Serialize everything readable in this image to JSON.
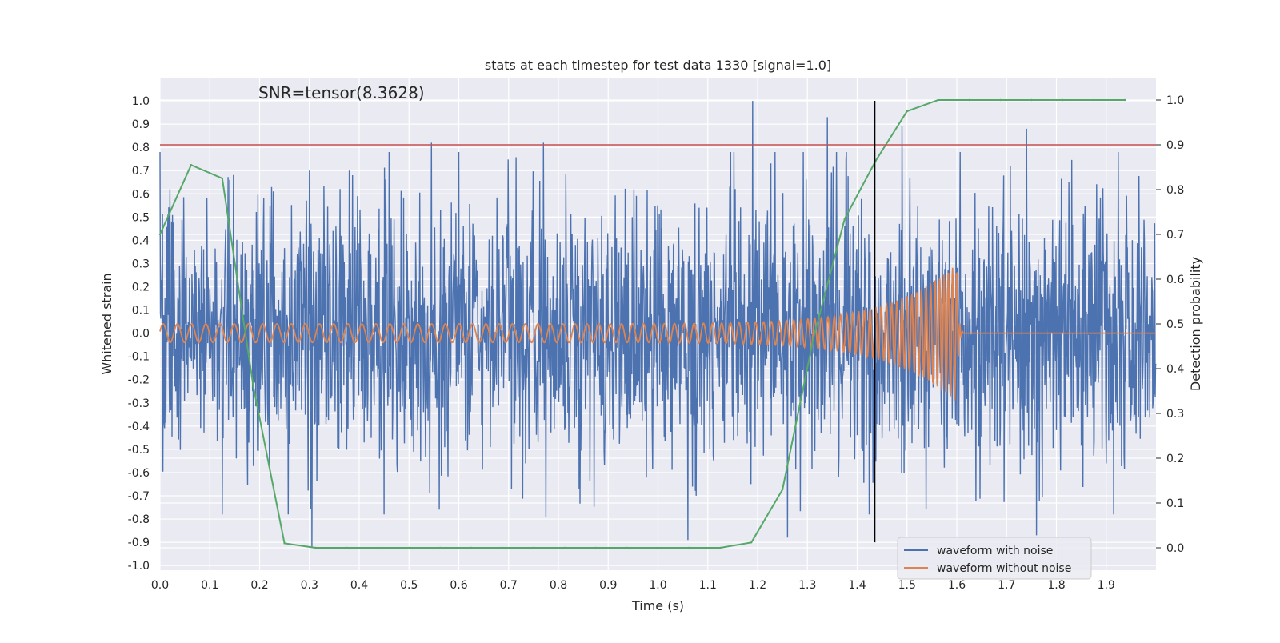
{
  "chart_data": {
    "type": "line",
    "title": "stats at each timestep for test data 1330 [signal=1.0]",
    "annotation": "SNR=tensor(8.3628)",
    "xlabel": "Time (s)",
    "ylabel_left": "Whitened strain",
    "ylabel_right": "Detection probability",
    "xlim": [
      0.0,
      2.0
    ],
    "ylim_left": [
      -1.02,
      1.1
    ],
    "ylim_right": [
      -0.05,
      1.05
    ],
    "x_ticks": [
      "0.0",
      "0.1",
      "0.2",
      "0.3",
      "0.4",
      "0.5",
      "0.6",
      "0.7",
      "0.8",
      "0.9",
      "1.0",
      "1.1",
      "1.2",
      "1.3",
      "1.4",
      "1.5",
      "1.6",
      "1.7",
      "1.8",
      "1.9"
    ],
    "y_ticks_left": [
      "-1.0",
      "-0.9",
      "-0.8",
      "-0.7",
      "-0.6",
      "-0.5",
      "-0.4",
      "-0.3",
      "-0.2",
      "-0.1",
      "0.0",
      "0.1",
      "0.2",
      "0.3",
      "0.4",
      "0.5",
      "0.6",
      "0.7",
      "0.8",
      "0.9",
      "1.0"
    ],
    "y_ticks_right": [
      "0.0",
      "0.1",
      "0.2",
      "0.3",
      "0.4",
      "0.5",
      "0.6",
      "0.7",
      "0.8",
      "0.9",
      "1.0"
    ],
    "grid": true,
    "legend_position": "lower-right",
    "series": [
      {
        "name": "waveform with noise",
        "axis": "left",
        "color": "#4c72b0",
        "kind": "noise",
        "amplitude_rms": 0.28,
        "peaks": [
          [
            0.02,
            0.62
          ],
          [
            0.14,
            0.66
          ],
          [
            0.3,
            0.7
          ],
          [
            0.38,
            0.7
          ],
          [
            0.545,
            0.82
          ],
          [
            0.77,
            0.82
          ],
          [
            1.19,
            1.0
          ],
          [
            1.34,
            0.93
          ],
          [
            1.49,
            0.89
          ],
          [
            1.74,
            0.88
          ],
          [
            0.305,
            -0.92
          ],
          [
            0.775,
            -0.79
          ],
          [
            1.06,
            -0.89
          ],
          [
            1.26,
            -0.88
          ],
          [
            1.76,
            -0.87
          ]
        ]
      },
      {
        "name": "waveform without noise",
        "axis": "left",
        "color": "#dd8452",
        "kind": "chirp",
        "start_amplitude": 0.04,
        "peak_amplitude": 0.3,
        "merger_time": 1.6,
        "start_frequency_hz": 35,
        "end_frequency_hz": 120
      },
      {
        "name": "Detection probability",
        "axis": "right",
        "color": "#55a868",
        "x": [
          0.0,
          0.0625,
          0.125,
          0.1875,
          0.25,
          0.3125,
          0.375,
          0.4375,
          0.5,
          0.5625,
          0.625,
          0.6875,
          0.75,
          0.8125,
          0.875,
          0.9375,
          1.0,
          1.0625,
          1.125,
          1.1875,
          1.25,
          1.3125,
          1.375,
          1.4375,
          1.5,
          1.5625,
          1.625,
          1.6875,
          1.75,
          1.8125,
          1.875,
          1.9375
        ],
        "y": [
          0.7,
          0.855,
          0.825,
          0.36,
          0.01,
          0.0,
          0.0,
          0.0,
          0.0,
          0.0,
          0.0,
          0.0,
          0.0,
          0.0,
          0.0,
          0.0,
          0.0,
          0.0,
          0.0,
          0.012,
          0.13,
          0.47,
          0.735,
          0.865,
          0.975,
          1.0,
          1.0,
          1.0,
          1.0,
          1.0,
          1.0,
          1.0
        ]
      }
    ],
    "threshold": {
      "axis": "right",
      "value": 0.9,
      "color": "#c44e52"
    },
    "marker_line": {
      "x": 1.435,
      "y_range": [
        -0.9,
        1.0
      ],
      "color": "#000000"
    }
  }
}
